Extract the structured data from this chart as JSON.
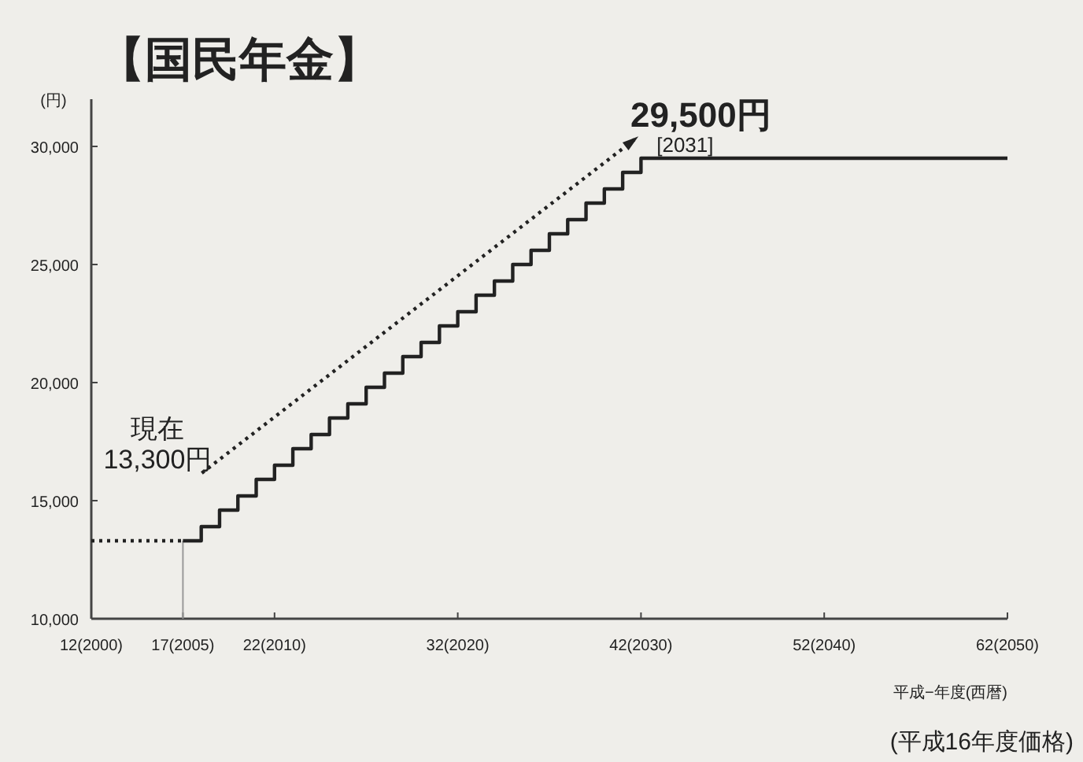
{
  "chart_data": {
    "type": "step",
    "title": "【国民年金】",
    "ylabel": "(円)",
    "xlabel": "平成−年度(西暦)",
    "ylim": [
      10000,
      32000
    ],
    "categories": [
      "12(2000)",
      null,
      null,
      null,
      null,
      "17(2005)",
      null,
      null,
      null,
      null,
      "22(2010)",
      null,
      null,
      null,
      null,
      null,
      null,
      null,
      null,
      null,
      "32(2020)",
      null,
      null,
      null,
      null,
      null,
      null,
      null,
      null,
      null,
      "42(2030)",
      null,
      null,
      null,
      null,
      null,
      null,
      null,
      null,
      null,
      "52(2040)",
      null,
      null,
      null,
      null,
      null,
      null,
      null,
      null,
      null,
      "62(2050)"
    ],
    "yticks": [
      {
        "value": 10000,
        "label": "10,000"
      },
      {
        "value": 15000,
        "label": "15,000"
      },
      {
        "value": 20000,
        "label": "20,000"
      },
      {
        "value": 25000,
        "label": "25,000"
      },
      {
        "value": 30000,
        "label": "30,000"
      }
    ],
    "grid": false,
    "series": [
      {
        "color": "#222222",
        "line_style": "dotted",
        "values": [
          13300,
          13300,
          13300,
          13300,
          13300,
          13300,
          null,
          null,
          null,
          null,
          null,
          null,
          null,
          null,
          null,
          null,
          null,
          null,
          null,
          null,
          null,
          null,
          null,
          null,
          null,
          null,
          null,
          null,
          null,
          null,
          null,
          null,
          null,
          null,
          null,
          null,
          null,
          null,
          null,
          null,
          null,
          null,
          null,
          null,
          null,
          null,
          null,
          null,
          null,
          null,
          null
        ]
      },
      {
        "color": "#222222",
        "line_style": "solid",
        "values": [
          null,
          null,
          null,
          null,
          null,
          13300,
          13900,
          14600,
          15200,
          15900,
          16500,
          17200,
          17800,
          18500,
          19100,
          19800,
          20400,
          21100,
          21700,
          22400,
          23000,
          23700,
          24300,
          25000,
          25600,
          26300,
          26900,
          27600,
          28200,
          28900,
          29500,
          29500,
          29500,
          29500,
          29500,
          29500,
          29500,
          29500,
          29500,
          29500,
          29500,
          29500,
          29500,
          29500,
          29500,
          29500,
          29500,
          29500,
          29500,
          29500,
          29500
        ]
      }
    ],
    "ref_lines": [
      {
        "axis": "x",
        "value": "17(2005)",
        "color": "#999999"
      }
    ],
    "annotations": [
      {
        "text": "現在\n13,300円",
        "x": "17(2005)",
        "y": 13300
      },
      {
        "text": "29,500円",
        "y": 29500
      },
      {
        "text": "[2031]",
        "y": 29500
      },
      "(平成16年度価格)"
    ]
  }
}
